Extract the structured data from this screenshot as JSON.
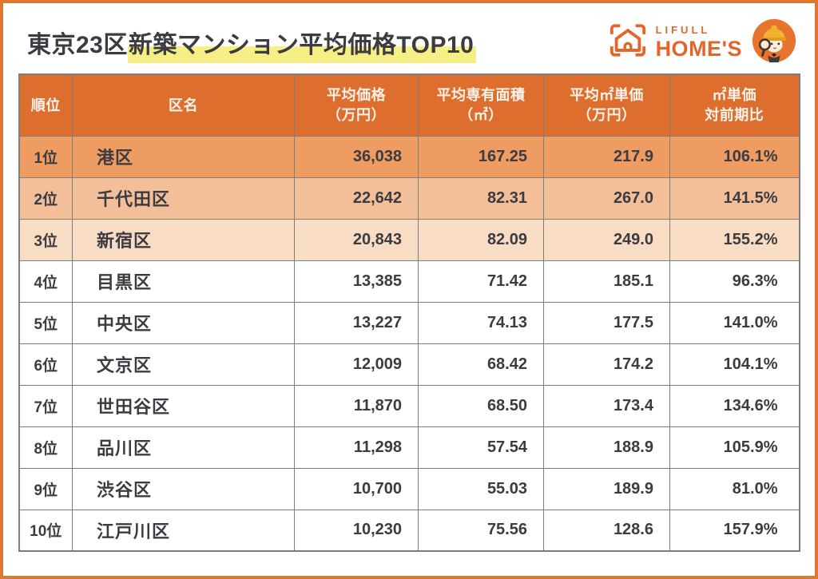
{
  "header": {
    "title_plain": "東京23区",
    "title_highlight": "新築マンション平均価格TOP10",
    "logo": {
      "brand_top": "LIFULL",
      "brand_bottom": "HOME'S",
      "house_icon": "house-in-viewfinder-brackets-icon",
      "mascot_icon": "homes-kun-mascot-with-magnifier-icon"
    }
  },
  "colors": {
    "frame": "#DF7730",
    "accent_orange": "#E2662B",
    "highlight_yellow": "#F5EF85",
    "header_bg": "#DE6E2D",
    "header_text": "#FCF3EA",
    "row1_bg": "#EE9C61",
    "row2_bg": "#F3BF99",
    "row3_bg": "#F8DCC3",
    "row_default_bg": "#FFFFFF",
    "text_dark": "#3B3B41",
    "border_gray": "#7D7D7D",
    "mascot_circle": "#E8732C",
    "mascot_helmet": "#F2B132"
  },
  "chart_data": {
    "type": "table",
    "title": "東京23区新築マンション平均価格TOP10",
    "columns": [
      {
        "key": "rank",
        "label": "順位",
        "align": "center"
      },
      {
        "key": "ward",
        "label": "区名",
        "align": "left"
      },
      {
        "key": "price",
        "label": "平均価格\n（万円）",
        "align": "right"
      },
      {
        "key": "area",
        "label": "平均専有面積\n（㎡）",
        "align": "right"
      },
      {
        "key": "unit_price",
        "label": "平均㎡単価\n（万円）",
        "align": "right"
      },
      {
        "key": "yoy",
        "label": "㎡単価\n対前期比",
        "align": "right"
      }
    ],
    "rows": [
      {
        "rank": "1位",
        "ward": "港区",
        "price": "36,038",
        "area": "167.25",
        "unit_price": "217.9",
        "yoy": "106.1%",
        "bg": "#EE9C61"
      },
      {
        "rank": "2位",
        "ward": "千代田区",
        "price": "22,642",
        "area": "82.31",
        "unit_price": "267.0",
        "yoy": "141.5%",
        "bg": "#F3BF99"
      },
      {
        "rank": "3位",
        "ward": "新宿区",
        "price": "20,843",
        "area": "82.09",
        "unit_price": "249.0",
        "yoy": "155.2%",
        "bg": "#F8DCC3"
      },
      {
        "rank": "4位",
        "ward": "目黒区",
        "price": "13,385",
        "area": "71.42",
        "unit_price": "185.1",
        "yoy": "96.3%",
        "bg": "#FFFFFF"
      },
      {
        "rank": "5位",
        "ward": "中央区",
        "price": "13,227",
        "area": "74.13",
        "unit_price": "177.5",
        "yoy": "141.0%",
        "bg": "#FFFFFF"
      },
      {
        "rank": "6位",
        "ward": "文京区",
        "price": "12,009",
        "area": "68.42",
        "unit_price": "174.2",
        "yoy": "104.1%",
        "bg": "#FFFFFF"
      },
      {
        "rank": "7位",
        "ward": "世田谷区",
        "price": "11,870",
        "area": "68.50",
        "unit_price": "173.4",
        "yoy": "134.6%",
        "bg": "#FFFFFF"
      },
      {
        "rank": "8位",
        "ward": "品川区",
        "price": "11,298",
        "area": "57.54",
        "unit_price": "188.9",
        "yoy": "105.9%",
        "bg": "#FFFFFF"
      },
      {
        "rank": "9位",
        "ward": "渋谷区",
        "price": "10,700",
        "area": "55.03",
        "unit_price": "189.9",
        "yoy": "81.0%",
        "bg": "#FFFFFF"
      },
      {
        "rank": "10位",
        "ward": "江戸川区",
        "price": "10,230",
        "area": "75.56",
        "unit_price": "128.6",
        "yoy": "157.9%",
        "bg": "#FFFFFF"
      }
    ]
  }
}
